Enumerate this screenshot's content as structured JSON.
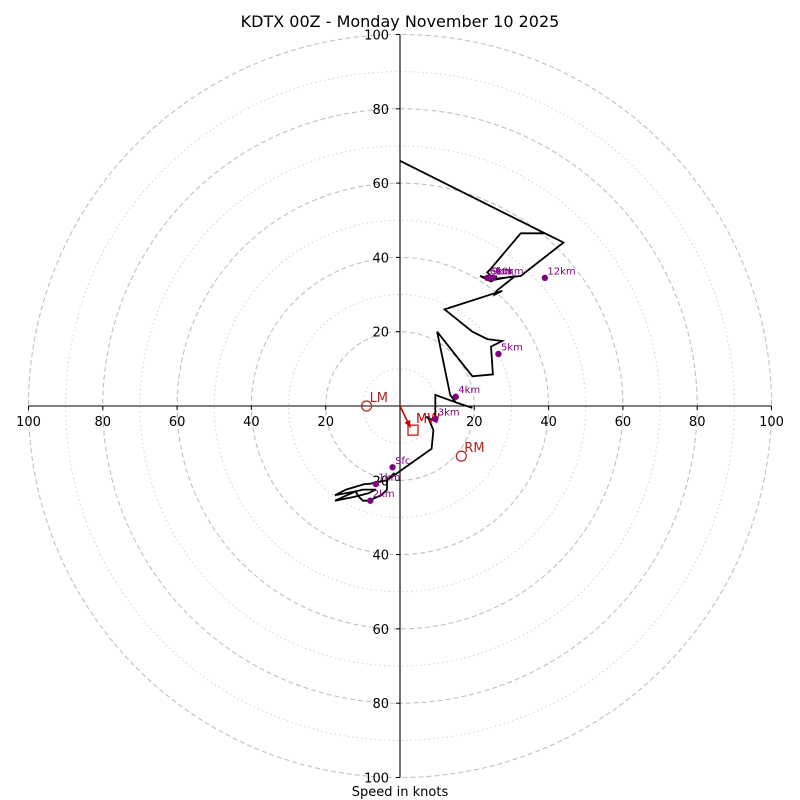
{
  "chart_data": {
    "type": "hodograph",
    "title": "KDTX 00Z - Monday November 10 2025",
    "xlabel": "Speed in knots",
    "units": "knots",
    "range": [
      -100,
      100
    ],
    "ring_major": [
      20,
      40,
      60,
      80,
      100
    ],
    "ring_minor": [
      10,
      30,
      50,
      70,
      90
    ],
    "x_tick_values": [
      -100,
      -80,
      -60,
      -40,
      -20,
      20,
      40,
      60,
      80,
      100
    ],
    "x_tick_labels": [
      "100",
      "80",
      "60",
      "40",
      "20",
      "20",
      "40",
      "60",
      "80",
      "100"
    ],
    "y_tick_values": [
      100,
      80,
      60,
      40,
      20,
      -20,
      -40,
      -60,
      -80,
      -100
    ],
    "y_tick_labels": [
      "100",
      "80",
      "60",
      "40",
      "20",
      "20",
      "40",
      "60",
      "80",
      "100"
    ],
    "trace": {
      "name": "wind profile",
      "u": [
        -1.5,
        -3.5,
        -8.5,
        -9.5,
        -14.5,
        -17.5,
        -12,
        -10,
        -6.5,
        -8.5,
        -12.5,
        -17.5,
        -12,
        -11,
        -10,
        -8.5,
        -5,
        -3.5,
        -3.5,
        8.5,
        9,
        7.5,
        7,
        9.5,
        9.5,
        15,
        19.5,
        15,
        13.5,
        10,
        19.5,
        25,
        24.5,
        27.5,
        23.5,
        19.5,
        12,
        27.5,
        25.5,
        26,
        31,
        25.5,
        21.5,
        25.5,
        24.5,
        22.5,
        24.5,
        23.5,
        24,
        24.5,
        32.5,
        39,
        0,
        39,
        44,
        32.5,
        23,
        26,
        25
      ],
      "v": [
        -18,
        -20,
        -21,
        -21,
        -22.5,
        -24,
        -23,
        -22.5,
        -22.5,
        -23.5,
        -24.5,
        -25.5,
        -23,
        -24.5,
        -25.5,
        -25.5,
        -24,
        -22.5,
        -20,
        -11.5,
        -6.5,
        -3,
        -3,
        -4,
        3,
        1,
        -0.5,
        1,
        3,
        20,
        8,
        8.5,
        16,
        17.5,
        18,
        20,
        26,
        31,
        30,
        31,
        35,
        34,
        35,
        34,
        33.5,
        34.5,
        35,
        36,
        36.5,
        37,
        46.5,
        46.5,
        66,
        46.5,
        44,
        35,
        34,
        35,
        34
      ]
    },
    "height_markers": [
      {
        "label": "Sfc",
        "u": -2,
        "v": -16.5
      },
      {
        "label": "1km",
        "u": -6.5,
        "v": -21
      },
      {
        "label": "2km",
        "u": -8,
        "v": -25.5
      },
      {
        "label": "3km",
        "u": 9.5,
        "v": -3.5
      },
      {
        "label": "4km",
        "u": 15,
        "v": 2.5
      },
      {
        "label": "5km",
        "u": 26.5,
        "v": 14
      },
      {
        "label": "6km",
        "u": 23.5,
        "v": 34.5
      },
      {
        "label": "9km",
        "u": 24,
        "v": 34.5
      },
      {
        "label": "10km",
        "u": 25,
        "v": 34.5
      },
      {
        "label": "12km",
        "u": 39,
        "v": 34.5
      }
    ],
    "storm_motion": {
      "MW": {
        "label": "MW",
        "u": 3.5,
        "v": -6.5
      },
      "LM": {
        "label": "LM",
        "u": -9,
        "v": 0
      },
      "RM": {
        "label": "RM",
        "u": 16.5,
        "v": -13.5
      },
      "mean_wind_arrow": {
        "from": [
          0,
          0
        ],
        "to": [
          2.8,
          -5.8
        ]
      }
    },
    "colors": {
      "trace": "#000000",
      "markers": "#800080",
      "motion": "#cc0000",
      "motion_circles": "#b22222",
      "rings": "#c0c0c0",
      "minor_rings": "#d3d3d3",
      "axes": "#000000"
    }
  }
}
